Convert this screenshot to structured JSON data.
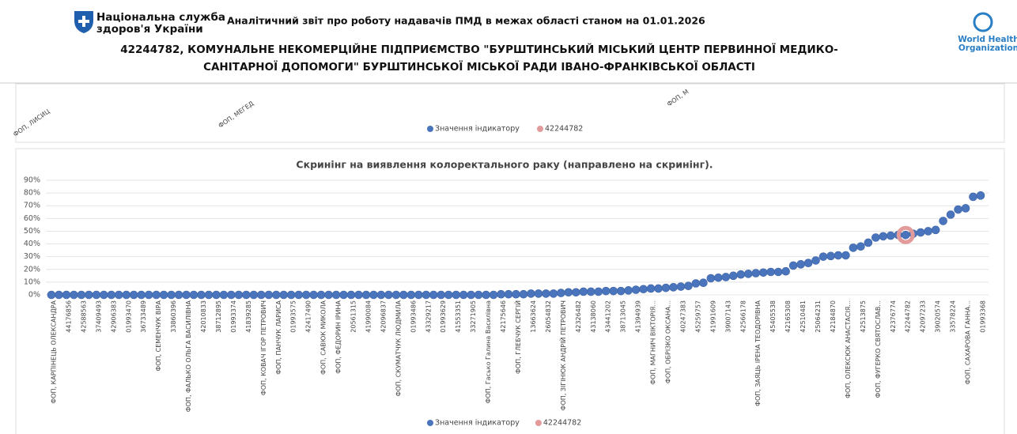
{
  "header": {
    "org_line1": "Національна служба",
    "org_line2": "здоров'я України",
    "report_title": "Аналітичний звіт про роботу надавачів ПМД в межах області станом на 01.01.2026",
    "facility_line1": "42244782, КОМУНАЛЬНЕ НЕКОМЕРЦІЙНЕ ПІДПРИЄМСТВО \"БУРШТИНСЬКИЙ МІСЬКИЙ ЦЕНТР ПЕРВИННОЇ МЕДИКО-",
    "facility_line2": "САНІТАРНОЇ ДОПОМОГИ\" БУРШТИНСЬКОЇ МІСЬКОЇ РАДИ ІВАНО-ФРАНКІВСЬКОЇ ОБЛАСТІ",
    "who_line1": "World Health",
    "who_line2": "Organization"
  },
  "top_panel": {
    "labels": [
      "ФОП, ЛИСИЦ",
      "ФОП, МЕГЕД",
      "ФОП, М"
    ],
    "legend": [
      "Значення індикатору",
      "42244782"
    ]
  },
  "chart_data": {
    "type": "scatter",
    "title": "Скринінг на виявлення колоректального раку (направлено на скринінг).",
    "categories": [
      "ФОП, КАРПІНЕЦЬ ОЛЕКСАНДРА",
      null,
      "44176856",
      null,
      "42588563",
      null,
      "37409493",
      null,
      "42906383",
      null,
      "01993470",
      null,
      "36733489",
      null,
      "ФОП, СЕМЕНЧУК ВІРА",
      null,
      "33860396",
      null,
      "ФОП, ФАЛЬКО ОЛЬГА ВАСИЛІВНА",
      null,
      "42010833",
      null,
      "38712895",
      null,
      "01993374",
      null,
      "41839285",
      null,
      "ФОП, КОВАЧ ІГОР ПЕТРОВИЧ",
      null,
      "ФОП, ПАНЧУК ЛАРИСА",
      null,
      "01993575",
      null,
      "42417490",
      null,
      "ФОП, САВЮК МИКОЛА",
      null,
      "ФОП, ФЕДОРИН ІРИНА",
      null,
      "20561315",
      null,
      "41990084",
      null,
      "42096837",
      null,
      "ФОП, СКУМАТЧУК ЛЮДМИЛА",
      null,
      "01993486",
      null,
      "43329217",
      null,
      "01993629",
      null,
      "41553351",
      null,
      "33271905",
      null,
      "ФОП, Гасько Галина Василівна",
      null,
      "42175646",
      null,
      "ФОП, ГЛЕБЧУК СЕРГІЙ",
      null,
      "13663624",
      null,
      "26054832",
      null,
      "ФОП, ЗІГІНЮК АНДРІЙ ПЕТРОВИЧ",
      null,
      "42326482",
      null,
      "43138060",
      null,
      "43441202",
      null,
      "38713045",
      null,
      "41394939",
      null,
      "ФОП, МАГНИЧ ВІКТОРІЯ...",
      null,
      "ФОП, ОБРІЗКО ОКСАНА...",
      null,
      "40247383",
      null,
      "45259757",
      null,
      "41991609",
      null,
      "39007143",
      null,
      "42566178",
      null,
      "ФОП, ЗАЯЦЬ ІРЕНА ТЕОДОРІВНА",
      null,
      "45405538",
      null,
      "42165308",
      null,
      "42510481",
      null,
      "25064231",
      null,
      "42184870",
      null,
      "ФОП, ОЛЕКСЮК АНАСТАСІЯ...",
      null,
      "42513875",
      null,
      "ФОП, ФУГЕРКО СВЯТОСЛАВ...",
      null,
      "42376774",
      null,
      "42244782",
      null,
      "42097233",
      null,
      "39020574",
      null,
      "33578224",
      null,
      "ФОП, САХАРОВА ГАННА...",
      null,
      "01993368"
    ],
    "series": [
      {
        "name": "Значення індикатору",
        "color": "#4a74bb",
        "values": [
          0,
          0,
          0,
          0,
          0,
          0,
          0,
          0,
          0,
          0,
          0,
          0,
          0,
          0,
          0,
          0,
          0,
          0,
          0,
          0,
          0,
          0,
          0,
          0,
          0,
          0,
          0,
          0,
          0,
          0,
          0,
          0,
          0,
          0,
          0,
          0,
          0,
          0,
          0,
          0,
          0,
          0,
          0,
          0,
          0,
          0,
          0,
          0,
          0,
          0,
          0,
          0,
          0,
          0,
          0,
          0,
          0,
          0,
          0,
          0,
          0.5,
          0.5,
          0.5,
          0.5,
          1,
          1,
          1,
          1,
          1.5,
          2,
          2,
          2.5,
          2.5,
          2.5,
          3,
          3,
          3,
          3.5,
          4,
          4.5,
          5,
          5,
          5.5,
          6,
          6.5,
          7,
          9,
          9.5,
          13,
          13.5,
          14,
          15,
          16,
          16.5,
          17,
          17.5,
          18,
          18,
          18.5,
          23,
          24,
          25,
          27,
          30,
          30.5,
          31,
          31,
          37,
          38,
          41,
          45,
          46,
          46.5,
          47,
          47,
          48,
          49,
          50,
          51,
          58,
          63,
          67,
          68,
          77,
          78
        ]
      },
      {
        "name": "42244782",
        "color": "#e39a9a",
        "values": [
          null,
          null,
          null,
          null,
          null,
          null,
          null,
          null,
          null,
          null,
          null,
          null,
          null,
          null,
          null,
          null,
          null,
          null,
          null,
          null,
          null,
          null,
          null,
          null,
          null,
          null,
          null,
          null,
          null,
          null,
          null,
          null,
          null,
          null,
          null,
          null,
          null,
          null,
          null,
          null,
          null,
          null,
          null,
          null,
          null,
          null,
          null,
          null,
          null,
          null,
          null,
          null,
          null,
          null,
          null,
          null,
          null,
          null,
          null,
          null,
          null,
          null,
          null,
          null,
          null,
          null,
          null,
          null,
          null,
          null,
          null,
          null,
          null,
          null,
          null,
          null,
          null,
          null,
          null,
          null,
          null,
          null,
          null,
          null,
          null,
          null,
          null,
          null,
          null,
          null,
          null,
          null,
          null,
          null,
          null,
          null,
          null,
          null,
          null,
          null,
          null,
          null,
          null,
          null,
          null,
          null,
          null,
          null,
          null,
          null,
          null,
          null,
          null,
          null,
          47,
          null,
          null,
          null,
          null,
          null,
          null,
          null,
          null,
          null,
          null
        ]
      }
    ],
    "ylim": [
      0,
      90
    ],
    "yticks": [
      {
        "value": 0,
        "label": "0%"
      },
      {
        "value": 10,
        "label": "10%"
      },
      {
        "value": 20,
        "label": "20%"
      },
      {
        "value": 30,
        "label": "30%"
      },
      {
        "value": 40,
        "label": "40%"
      },
      {
        "value": 50,
        "label": "50%"
      },
      {
        "value": 60,
        "label": "60%"
      },
      {
        "value": 70,
        "label": "70%"
      },
      {
        "value": 80,
        "label": "80%"
      },
      {
        "value": 90,
        "label": "90%"
      }
    ],
    "grid": true
  }
}
